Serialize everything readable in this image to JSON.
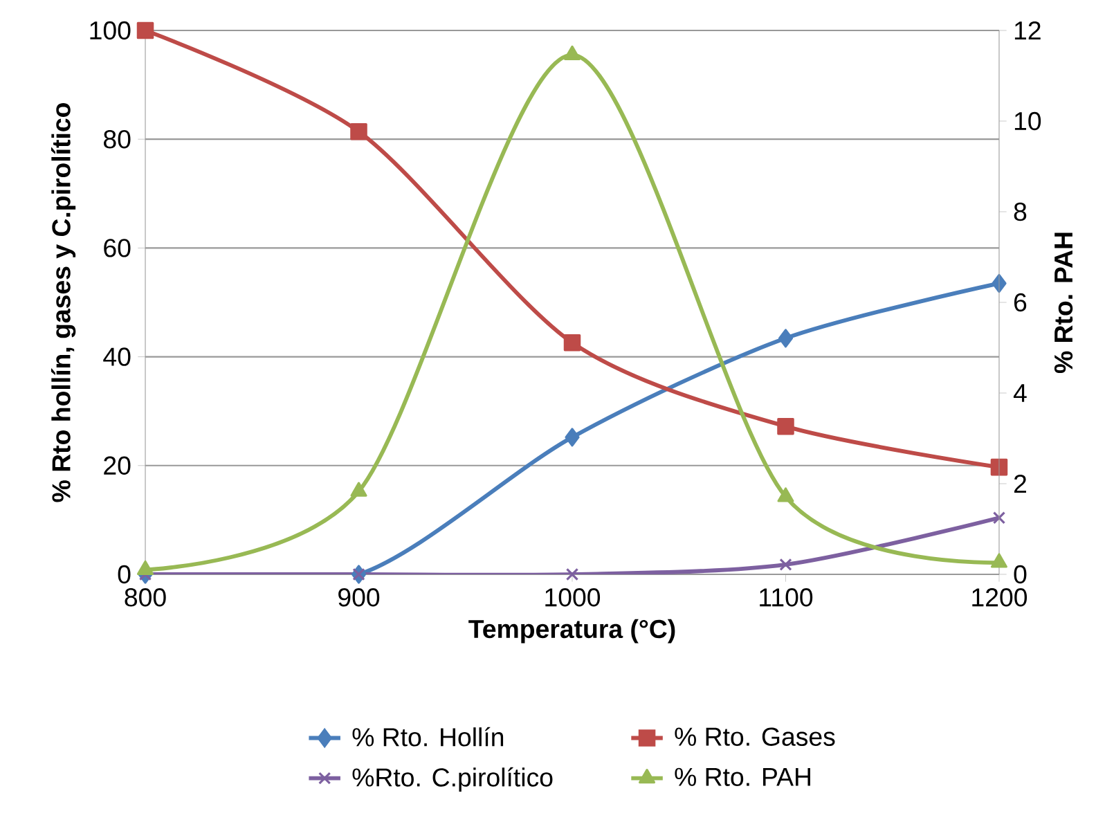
{
  "chart_data": {
    "type": "line",
    "xlabel": "Temperatura (°C)",
    "ylabel": "% Rto hollín, gases y C.pirolítico",
    "y2label": "% Rto. PAH",
    "x": [
      800,
      900,
      1000,
      1100,
      1200
    ],
    "xlim": [
      800,
      1200
    ],
    "xticks": [
      800,
      900,
      1000,
      1100,
      1200
    ],
    "ylim": [
      0,
      100
    ],
    "yticks": [
      0,
      20,
      40,
      60,
      80,
      100
    ],
    "y2lim": [
      0,
      12
    ],
    "y2ticks": [
      0,
      2,
      4,
      6,
      8,
      10,
      12
    ],
    "grid": "y",
    "legend": "bottom",
    "series": [
      {
        "name": "% Rto. Hollín",
        "color": "#4a7ebb",
        "marker": "diamond",
        "values": [
          0,
          0,
          25.2,
          43.4,
          53.5
        ]
      },
      {
        "name": "% Rto. Gases",
        "color": "#be4b48",
        "marker": "square",
        "values": [
          100,
          81.4,
          42.6,
          27.2,
          19.7
        ]
      },
      {
        "name": "%Rto. C.pirolítico",
        "color": "#7d60a0",
        "marker": "cross",
        "values": [
          0,
          0,
          0,
          1.8,
          10.4
        ]
      },
      {
        "name": "% Rto. PAH",
        "color": "#98b954",
        "marker": "triangle",
        "axis": "y2",
        "values": [
          0.1,
          1.83,
          11.46,
          1.71,
          0.26
        ]
      }
    ]
  }
}
